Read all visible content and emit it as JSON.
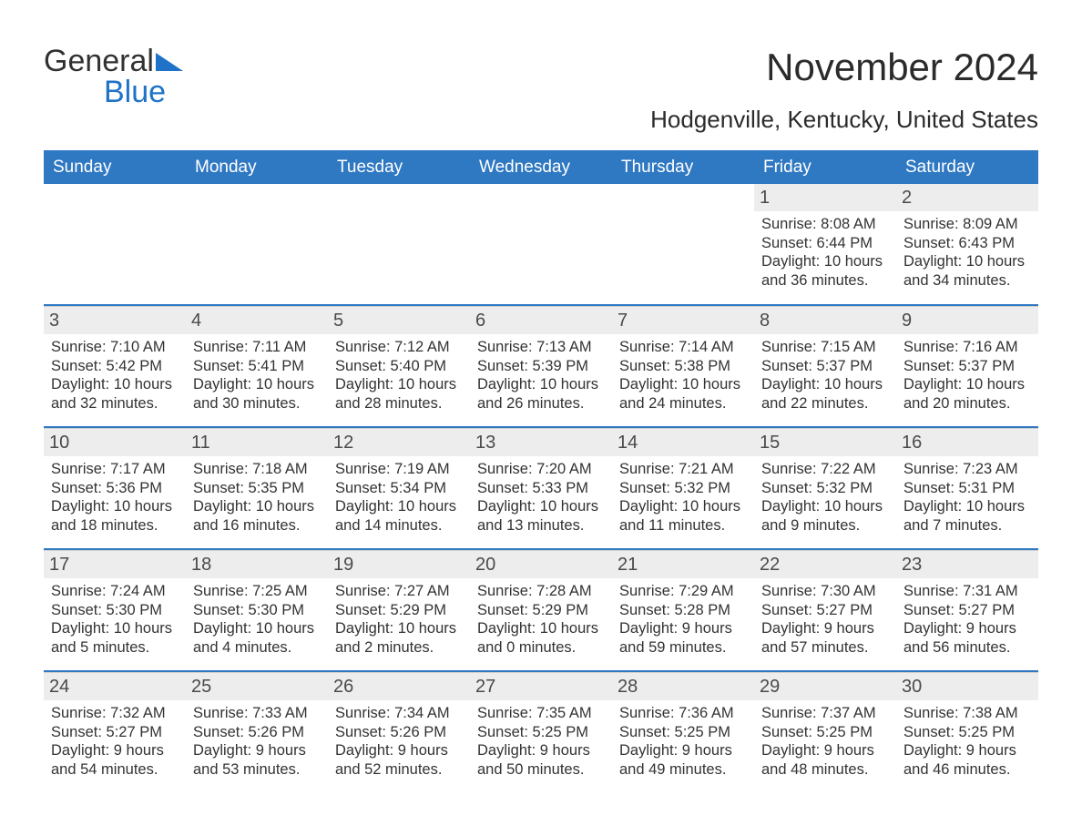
{
  "colors": {
    "header_bg": "#2f78c2",
    "divider": "#2f78c2",
    "daynum_bg": "#ededed",
    "text": "#333333",
    "logo_blue": "#1e73c8"
  },
  "logo": {
    "word1": "General",
    "word2": "Blue"
  },
  "title": "November 2024",
  "location": "Hodgenville, Kentucky, United States",
  "days_of_week": [
    "Sunday",
    "Monday",
    "Tuesday",
    "Wednesday",
    "Thursday",
    "Friday",
    "Saturday"
  ],
  "weeks": [
    [
      null,
      null,
      null,
      null,
      null,
      {
        "d": "1",
        "sr": "Sunrise: 8:08 AM",
        "ss": "Sunset: 6:44 PM",
        "dl": "Daylight: 10 hours and 36 minutes."
      },
      {
        "d": "2",
        "sr": "Sunrise: 8:09 AM",
        "ss": "Sunset: 6:43 PM",
        "dl": "Daylight: 10 hours and 34 minutes."
      }
    ],
    [
      {
        "d": "3",
        "sr": "Sunrise: 7:10 AM",
        "ss": "Sunset: 5:42 PM",
        "dl": "Daylight: 10 hours and 32 minutes."
      },
      {
        "d": "4",
        "sr": "Sunrise: 7:11 AM",
        "ss": "Sunset: 5:41 PM",
        "dl": "Daylight: 10 hours and 30 minutes."
      },
      {
        "d": "5",
        "sr": "Sunrise: 7:12 AM",
        "ss": "Sunset: 5:40 PM",
        "dl": "Daylight: 10 hours and 28 minutes."
      },
      {
        "d": "6",
        "sr": "Sunrise: 7:13 AM",
        "ss": "Sunset: 5:39 PM",
        "dl": "Daylight: 10 hours and 26 minutes."
      },
      {
        "d": "7",
        "sr": "Sunrise: 7:14 AM",
        "ss": "Sunset: 5:38 PM",
        "dl": "Daylight: 10 hours and 24 minutes."
      },
      {
        "d": "8",
        "sr": "Sunrise: 7:15 AM",
        "ss": "Sunset: 5:37 PM",
        "dl": "Daylight: 10 hours and 22 minutes."
      },
      {
        "d": "9",
        "sr": "Sunrise: 7:16 AM",
        "ss": "Sunset: 5:37 PM",
        "dl": "Daylight: 10 hours and 20 minutes."
      }
    ],
    [
      {
        "d": "10",
        "sr": "Sunrise: 7:17 AM",
        "ss": "Sunset: 5:36 PM",
        "dl": "Daylight: 10 hours and 18 minutes."
      },
      {
        "d": "11",
        "sr": "Sunrise: 7:18 AM",
        "ss": "Sunset: 5:35 PM",
        "dl": "Daylight: 10 hours and 16 minutes."
      },
      {
        "d": "12",
        "sr": "Sunrise: 7:19 AM",
        "ss": "Sunset: 5:34 PM",
        "dl": "Daylight: 10 hours and 14 minutes."
      },
      {
        "d": "13",
        "sr": "Sunrise: 7:20 AM",
        "ss": "Sunset: 5:33 PM",
        "dl": "Daylight: 10 hours and 13 minutes."
      },
      {
        "d": "14",
        "sr": "Sunrise: 7:21 AM",
        "ss": "Sunset: 5:32 PM",
        "dl": "Daylight: 10 hours and 11 minutes."
      },
      {
        "d": "15",
        "sr": "Sunrise: 7:22 AM",
        "ss": "Sunset: 5:32 PM",
        "dl": "Daylight: 10 hours and 9 minutes."
      },
      {
        "d": "16",
        "sr": "Sunrise: 7:23 AM",
        "ss": "Sunset: 5:31 PM",
        "dl": "Daylight: 10 hours and 7 minutes."
      }
    ],
    [
      {
        "d": "17",
        "sr": "Sunrise: 7:24 AM",
        "ss": "Sunset: 5:30 PM",
        "dl": "Daylight: 10 hours and 5 minutes."
      },
      {
        "d": "18",
        "sr": "Sunrise: 7:25 AM",
        "ss": "Sunset: 5:30 PM",
        "dl": "Daylight: 10 hours and 4 minutes."
      },
      {
        "d": "19",
        "sr": "Sunrise: 7:27 AM",
        "ss": "Sunset: 5:29 PM",
        "dl": "Daylight: 10 hours and 2 minutes."
      },
      {
        "d": "20",
        "sr": "Sunrise: 7:28 AM",
        "ss": "Sunset: 5:29 PM",
        "dl": "Daylight: 10 hours and 0 minutes."
      },
      {
        "d": "21",
        "sr": "Sunrise: 7:29 AM",
        "ss": "Sunset: 5:28 PM",
        "dl": "Daylight: 9 hours and 59 minutes."
      },
      {
        "d": "22",
        "sr": "Sunrise: 7:30 AM",
        "ss": "Sunset: 5:27 PM",
        "dl": "Daylight: 9 hours and 57 minutes."
      },
      {
        "d": "23",
        "sr": "Sunrise: 7:31 AM",
        "ss": "Sunset: 5:27 PM",
        "dl": "Daylight: 9 hours and 56 minutes."
      }
    ],
    [
      {
        "d": "24",
        "sr": "Sunrise: 7:32 AM",
        "ss": "Sunset: 5:27 PM",
        "dl": "Daylight: 9 hours and 54 minutes."
      },
      {
        "d": "25",
        "sr": "Sunrise: 7:33 AM",
        "ss": "Sunset: 5:26 PM",
        "dl": "Daylight: 9 hours and 53 minutes."
      },
      {
        "d": "26",
        "sr": "Sunrise: 7:34 AM",
        "ss": "Sunset: 5:26 PM",
        "dl": "Daylight: 9 hours and 52 minutes."
      },
      {
        "d": "27",
        "sr": "Sunrise: 7:35 AM",
        "ss": "Sunset: 5:25 PM",
        "dl": "Daylight: 9 hours and 50 minutes."
      },
      {
        "d": "28",
        "sr": "Sunrise: 7:36 AM",
        "ss": "Sunset: 5:25 PM",
        "dl": "Daylight: 9 hours and 49 minutes."
      },
      {
        "d": "29",
        "sr": "Sunrise: 7:37 AM",
        "ss": "Sunset: 5:25 PM",
        "dl": "Daylight: 9 hours and 48 minutes."
      },
      {
        "d": "30",
        "sr": "Sunrise: 7:38 AM",
        "ss": "Sunset: 5:25 PM",
        "dl": "Daylight: 9 hours and 46 minutes."
      }
    ]
  ]
}
